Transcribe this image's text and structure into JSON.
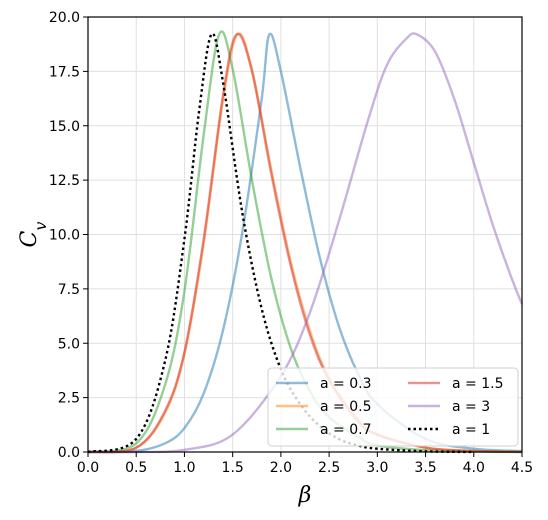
{
  "chart_data": {
    "type": "line",
    "xlabel": "β",
    "ylabel_main": "C",
    "ylabel_sub": "v",
    "xlim": [
      0.0,
      4.5
    ],
    "ylim": [
      0.0,
      20.0
    ],
    "x_ticks": [
      0.0,
      0.5,
      1.0,
      1.5,
      2.0,
      2.5,
      3.0,
      3.5,
      4.0,
      4.5
    ],
    "x_tick_labels": [
      "0.0",
      "0.5",
      "1.0",
      "1.5",
      "2.0",
      "2.5",
      "3.0",
      "3.5",
      "4.0",
      "4.5"
    ],
    "y_ticks": [
      0.0,
      2.5,
      5.0,
      7.5,
      10.0,
      12.5,
      15.0,
      17.5,
      20.0
    ],
    "y_tick_labels": [
      "0.0",
      "2.5",
      "5.0",
      "7.5",
      "10.0",
      "12.5",
      "15.0",
      "17.5",
      "20.0"
    ],
    "grid": true,
    "legend_position": "bottom-right",
    "legend_columns": 2,
    "series": [
      {
        "name": "a = 0.3",
        "color": "#1f77b4",
        "dash": "solid",
        "opacity": 0.5,
        "x": [
          0,
          0.5,
          0.8,
          1.0,
          1.2,
          1.4,
          1.6,
          1.8,
          1.88,
          2.0,
          2.2,
          2.4,
          2.6,
          2.8,
          3.0,
          3.5,
          4.0,
          4.5
        ],
        "y": [
          0,
          0.05,
          0.4,
          1.1,
          2.7,
          5.6,
          10.1,
          16.2,
          19.2,
          17.5,
          13.1,
          9.0,
          5.8,
          3.6,
          2.2,
          0.6,
          0.15,
          0.04
        ]
      },
      {
        "name": "a = 0.5",
        "color": "#ff7f0e",
        "dash": "solid",
        "opacity": 0.5,
        "x": [
          0,
          0.5,
          0.8,
          1.0,
          1.2,
          1.4,
          1.55,
          1.7,
          1.9,
          2.1,
          2.3,
          2.5,
          2.8,
          3.0,
          3.5,
          4.0,
          4.5
        ],
        "y": [
          0,
          0.2,
          1.8,
          4.5,
          9.6,
          16.2,
          19.2,
          17.6,
          13.0,
          8.8,
          5.6,
          3.4,
          1.5,
          0.8,
          0.2,
          0.05,
          0.01
        ]
      },
      {
        "name": "a = 0.7",
        "color": "#2ca02c",
        "dash": "solid",
        "opacity": 0.5,
        "x": [
          0,
          0.5,
          0.8,
          1.0,
          1.2,
          1.36,
          1.5,
          1.7,
          1.9,
          2.1,
          2.3,
          2.5,
          2.8,
          3.0,
          3.5,
          4.0,
          4.5
        ],
        "y": [
          0,
          0.4,
          3.1,
          7.4,
          14.6,
          19.2,
          17.6,
          12.5,
          8.0,
          4.8,
          2.8,
          1.6,
          0.7,
          0.3,
          0.08,
          0.02,
          0.0
        ]
      },
      {
        "name": "a = 1.5",
        "color": "#d62728",
        "dash": "solid",
        "opacity": 0.5,
        "x": [
          0,
          0.5,
          0.8,
          1.0,
          1.2,
          1.4,
          1.54,
          1.7,
          1.9,
          2.1,
          2.3,
          2.5,
          2.8,
          3.0,
          3.5,
          4.0,
          4.5
        ],
        "y": [
          0,
          0.2,
          1.9,
          4.6,
          9.8,
          16.4,
          19.2,
          17.5,
          12.8,
          8.6,
          5.4,
          3.3,
          1.4,
          0.8,
          0.2,
          0.05,
          0.01
        ]
      },
      {
        "name": "a = 3",
        "color": "#9467bd",
        "dash": "solid",
        "opacity": 0.5,
        "x": [
          0,
          0.5,
          1.0,
          1.5,
          2.0,
          2.3,
          2.6,
          2.9,
          3.1,
          3.3,
          3.41,
          3.6,
          3.8,
          4.0,
          4.2,
          4.4,
          4.5
        ],
        "y": [
          0,
          0.0,
          0.1,
          0.8,
          3.5,
          6.4,
          10.6,
          15.2,
          17.8,
          19.0,
          19.2,
          18.4,
          16.2,
          13.3,
          10.4,
          7.9,
          6.8
        ]
      },
      {
        "name": "a = 1",
        "color": "#000000",
        "dash": "dotted",
        "opacity": 1.0,
        "x": [
          0,
          0.5,
          0.8,
          1.0,
          1.15,
          1.28,
          1.4,
          1.6,
          1.8,
          2.0,
          2.2,
          2.4,
          2.6,
          2.8,
          3.0,
          3.5,
          4.0
        ],
        "y": [
          0,
          0.6,
          4.2,
          9.8,
          15.6,
          19.2,
          17.0,
          11.0,
          6.6,
          3.8,
          2.2,
          1.2,
          0.6,
          0.3,
          0.15,
          0.03,
          0.0
        ]
      }
    ]
  }
}
